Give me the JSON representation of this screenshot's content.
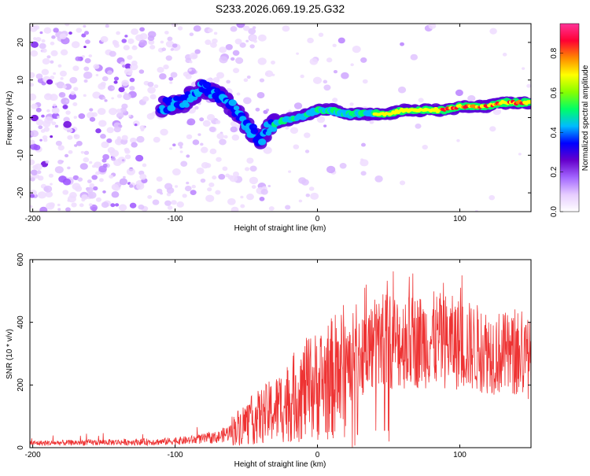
{
  "title": "S233.2026.069.19.25.G32",
  "chart_data": [
    {
      "type": "heatmap",
      "xlabel": "Height of straight line (km)",
      "ylabel": "Frequency (Hz)",
      "xlim": [
        -202,
        150
      ],
      "ylim": [
        -25,
        25
      ],
      "xticks": [
        -200,
        -100,
        0,
        100
      ],
      "yticks": [
        -20,
        -10,
        0,
        10,
        20
      ],
      "colorbar": {
        "label": "Normalized spectral amplitude",
        "range": [
          0,
          0.95
        ],
        "ticks": [
          0.0,
          0.2,
          0.4,
          0.6,
          0.8
        ],
        "tick_labels": [
          "0.0",
          "0.2",
          "0.4",
          "0.6",
          "0.8"
        ],
        "colormap": [
          "#ffffff",
          "#e6ccff",
          "#a366ff",
          "#6600cc",
          "#0000ff",
          "#00bbff",
          "#00ff66",
          "#88ff00",
          "#ffff00",
          "#ff8800",
          "#ff0033",
          "#ff3399"
        ]
      },
      "ridge": {
        "x": [
          -110,
          -95,
          -80,
          -70,
          -60,
          -50,
          -40,
          -33,
          -25,
          -15,
          -5,
          0,
          10,
          20,
          30,
          40,
          50,
          60,
          70,
          80,
          90,
          100,
          110,
          120,
          130,
          140,
          150
        ],
        "y": [
          3,
          4,
          8,
          6,
          3,
          -2,
          -6,
          -2,
          -1,
          0,
          1,
          2,
          2,
          1,
          1,
          1,
          1,
          2,
          2,
          2,
          2,
          3,
          3,
          3,
          4,
          4,
          4
        ]
      }
    },
    {
      "type": "line",
      "xlabel": "Height of straight line (km)",
      "ylabel": "SNR (10 * v/v)",
      "xlim": [
        -202,
        150
      ],
      "ylim": [
        0,
        600
      ],
      "xticks": [
        -200,
        -100,
        0,
        100
      ],
      "yticks": [
        0,
        200,
        400,
        600
      ],
      "color": "#ee3333",
      "envelope": {
        "x": [
          -202,
          -150,
          -110,
          -90,
          -70,
          -60,
          -50,
          -40,
          -30,
          -20,
          -10,
          0,
          10,
          20,
          25,
          30,
          40,
          50,
          60,
          70,
          80,
          90,
          100,
          110,
          120,
          130,
          140,
          150
        ],
        "y": [
          15,
          18,
          20,
          25,
          35,
          55,
          80,
          100,
          120,
          150,
          180,
          200,
          220,
          250,
          270,
          300,
          330,
          340,
          335,
          340,
          345,
          340,
          330,
          320,
          310,
          300,
          290,
          280
        ]
      }
    }
  ]
}
